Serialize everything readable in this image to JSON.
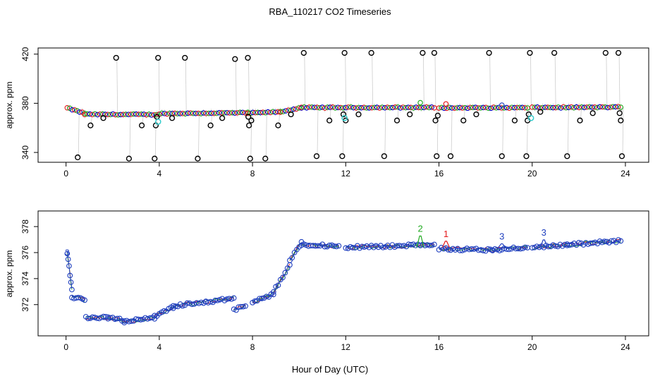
{
  "figure_title": "RBA_110217  CO2 Timeseries",
  "shared_xlabel": "Hour of Day (UTC)",
  "colors": {
    "raw_grey": "#9a9a9a",
    "outlier": "#000000",
    "cal": "#33cccc",
    "series1": "#e41a1c",
    "series2": "#22aa22",
    "series3": "#1f3fbf",
    "marker": "#0000cc"
  },
  "chart_data": [
    {
      "type": "scatter",
      "title": "",
      "xlabel": "",
      "ylabel": "approx. ppm",
      "xlim": [
        -1.2,
        25
      ],
      "ylim": [
        332,
        425
      ],
      "xticks": [
        0,
        4,
        8,
        12,
        16,
        20,
        24
      ],
      "yticks": [
        340,
        380,
        420
      ],
      "xtick_labels": [
        "0",
        "4",
        "8",
        "12",
        "16",
        "20",
        "24"
      ],
      "ytick_labels": [
        "340",
        "380",
        "420"
      ],
      "baseline_segments": [
        {
          "x0": 0.05,
          "x1": 0.8,
          "y0": 376.2,
          "y1": 371.8
        },
        {
          "x0": 0.8,
          "x1": 4.0,
          "y0": 371.0,
          "y1": 370.8
        },
        {
          "x0": 4.0,
          "x1": 7.8,
          "y0": 371.6,
          "y1": 372.3
        },
        {
          "x0": 7.8,
          "x1": 9.2,
          "y0": 372.0,
          "y1": 373.0
        },
        {
          "x0": 9.2,
          "x1": 10.1,
          "y0": 373.0,
          "y1": 376.5
        },
        {
          "x0": 10.1,
          "x1": 15.8,
          "y0": 376.5,
          "y1": 376.6
        },
        {
          "x0": 16.0,
          "x1": 19.8,
          "y0": 376.3,
          "y1": 376.4
        },
        {
          "x0": 20.0,
          "x1": 23.8,
          "y0": 376.5,
          "y1": 376.9
        }
      ],
      "outliers": [
        {
          "x": 0.5,
          "y": 336
        },
        {
          "x": 1.05,
          "y": 362
        },
        {
          "x": 1.6,
          "y": 368
        },
        {
          "x": 2.15,
          "y": 417
        },
        {
          "x": 2.7,
          "y": 335
        },
        {
          "x": 3.25,
          "y": 362
        },
        {
          "x": 3.8,
          "y": 335
        },
        {
          "x": 3.85,
          "y": 362
        },
        {
          "x": 3.9,
          "y": 369
        },
        {
          "x": 3.95,
          "y": 417
        },
        {
          "x": 4.55,
          "y": 368
        },
        {
          "x": 5.1,
          "y": 417
        },
        {
          "x": 5.65,
          "y": 335
        },
        {
          "x": 6.2,
          "y": 362
        },
        {
          "x": 6.7,
          "y": 368
        },
        {
          "x": 7.25,
          "y": 416
        },
        {
          "x": 7.8,
          "y": 417
        },
        {
          "x": 7.82,
          "y": 369
        },
        {
          "x": 7.85,
          "y": 362
        },
        {
          "x": 7.9,
          "y": 335
        },
        {
          "x": 7.95,
          "y": 366
        },
        {
          "x": 8.55,
          "y": 335
        },
        {
          "x": 9.1,
          "y": 362
        },
        {
          "x": 9.65,
          "y": 371
        },
        {
          "x": 10.2,
          "y": 421
        },
        {
          "x": 10.75,
          "y": 337
        },
        {
          "x": 11.3,
          "y": 366
        },
        {
          "x": 11.85,
          "y": 337
        },
        {
          "x": 11.9,
          "y": 371
        },
        {
          "x": 11.95,
          "y": 421
        },
        {
          "x": 12.0,
          "y": 366
        },
        {
          "x": 12.55,
          "y": 371
        },
        {
          "x": 13.1,
          "y": 421
        },
        {
          "x": 13.65,
          "y": 337
        },
        {
          "x": 14.2,
          "y": 366
        },
        {
          "x": 14.75,
          "y": 371
        },
        {
          "x": 15.3,
          "y": 421
        },
        {
          "x": 15.8,
          "y": 421
        },
        {
          "x": 15.85,
          "y": 366
        },
        {
          "x": 15.9,
          "y": 337
        },
        {
          "x": 15.95,
          "y": 370
        },
        {
          "x": 16.5,
          "y": 337
        },
        {
          "x": 17.05,
          "y": 366
        },
        {
          "x": 17.6,
          "y": 371
        },
        {
          "x": 18.15,
          "y": 421
        },
        {
          "x": 18.7,
          "y": 337
        },
        {
          "x": 19.25,
          "y": 366
        },
        {
          "x": 19.75,
          "y": 337
        },
        {
          "x": 19.8,
          "y": 366
        },
        {
          "x": 19.85,
          "y": 371
        },
        {
          "x": 19.9,
          "y": 421
        },
        {
          "x": 20.35,
          "y": 373
        },
        {
          "x": 20.95,
          "y": 421
        },
        {
          "x": 21.5,
          "y": 337
        },
        {
          "x": 22.05,
          "y": 366
        },
        {
          "x": 22.6,
          "y": 372
        },
        {
          "x": 23.15,
          "y": 421
        },
        {
          "x": 23.7,
          "y": 421
        },
        {
          "x": 23.75,
          "y": 372
        },
        {
          "x": 23.8,
          "y": 366
        },
        {
          "x": 23.85,
          "y": 337
        }
      ],
      "calibration_points": [
        {
          "x": 3.95,
          "y": 365
        },
        {
          "x": 11.95,
          "y": 368
        },
        {
          "x": 19.95,
          "y": 368
        }
      ],
      "excursions": [
        {
          "x": 15.2,
          "y": 380.5,
          "series": 2
        },
        {
          "x": 16.3,
          "y": 379.5,
          "series": 1
        },
        {
          "x": 18.7,
          "y": 378.5,
          "series": 3
        }
      ]
    },
    {
      "type": "line",
      "title": "",
      "xlabel": "Hour of Day (UTC)",
      "ylabel": "approx. ppm",
      "xlim": [
        -1.2,
        25
      ],
      "ylim": [
        369.6,
        379.2
      ],
      "xticks": [
        0,
        4,
        8,
        12,
        16,
        20,
        24
      ],
      "yticks": [
        372,
        374,
        376,
        378
      ],
      "xtick_labels": [
        "0",
        "4",
        "8",
        "12",
        "16",
        "20",
        "24"
      ],
      "ytick_labels": [
        "372",
        "374",
        "376",
        "378"
      ],
      "segments": [
        {
          "x0": 0.05,
          "x1": 0.25,
          "y0": 376.0,
          "y1": 373.2
        },
        {
          "x0": 0.25,
          "x1": 0.8,
          "y0": 372.6,
          "y1": 372.4
        },
        {
          "x0": 0.85,
          "x1": 1.8,
          "y0": 371.0,
          "y1": 371.0
        },
        {
          "x0": 1.8,
          "x1": 2.5,
          "y0": 371.0,
          "y1": 370.8
        },
        {
          "x0": 2.5,
          "x1": 3.8,
          "y0": 370.7,
          "y1": 371.0
        },
        {
          "x0": 3.8,
          "x1": 4.6,
          "y0": 371.1,
          "y1": 371.8
        },
        {
          "x0": 4.6,
          "x1": 6.0,
          "y0": 371.9,
          "y1": 372.2
        },
        {
          "x0": 6.0,
          "x1": 7.2,
          "y0": 372.2,
          "y1": 372.5
        },
        {
          "x0": 7.2,
          "x1": 7.7,
          "y0": 371.6,
          "y1": 371.9
        },
        {
          "x0": 8.0,
          "x1": 8.9,
          "y0": 372.2,
          "y1": 372.8
        },
        {
          "x0": 8.9,
          "x1": 9.6,
          "y0": 373.0,
          "y1": 375.0
        },
        {
          "x0": 9.6,
          "x1": 10.1,
          "y0": 375.4,
          "y1": 376.8
        },
        {
          "x0": 10.1,
          "x1": 11.7,
          "y0": 376.6,
          "y1": 376.5
        },
        {
          "x0": 12.0,
          "x1": 15.8,
          "y0": 376.4,
          "y1": 376.6
        },
        {
          "x0": 16.0,
          "x1": 18.3,
          "y0": 376.3,
          "y1": 376.2
        },
        {
          "x0": 18.3,
          "x1": 19.8,
          "y0": 376.2,
          "y1": 376.4
        },
        {
          "x0": 20.0,
          "x1": 21.5,
          "y0": 376.4,
          "y1": 376.6
        },
        {
          "x0": 21.5,
          "x1": 23.8,
          "y0": 376.6,
          "y1": 376.9
        }
      ],
      "spikes": [
        {
          "label": "2",
          "series": 2,
          "x": 15.2,
          "y": 377.6
        },
        {
          "label": "1",
          "series": 1,
          "x": 16.3,
          "y": 377.2
        },
        {
          "label": "3",
          "series": 3,
          "x": 18.7,
          "y": 377.0
        },
        {
          "label": "3",
          "series": 3,
          "x": 20.5,
          "y": 377.3
        }
      ]
    }
  ]
}
